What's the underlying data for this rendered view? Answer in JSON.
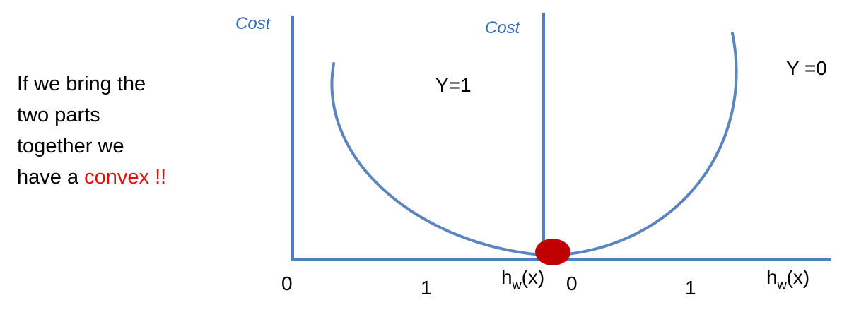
{
  "caption": {
    "line1": "If we bring the",
    "line2": "two parts",
    "line3": "together we",
    "line4_prefix": "have a ",
    "line4_accent": "convex !!"
  },
  "left_panel": {
    "y_axis_label": "Cost",
    "class_label": "Y=1",
    "tick_0": "0",
    "tick_1": "1",
    "x_axis_label_main": "h",
    "x_axis_label_sub": "w",
    "x_axis_label_arg": "(x)"
  },
  "right_panel": {
    "y_axis_label": "Cost",
    "class_label": "Y =0",
    "tick_0": "0",
    "tick_1": "1",
    "x_axis_label_main": "h",
    "x_axis_label_sub": "w",
    "x_axis_label_arg": "(x)"
  },
  "colors": {
    "axis": "#4f7fbd",
    "curve": "#5b86bd",
    "cost_label": "#2f6db5",
    "minimum_marker": "#c00000",
    "accent_text": "#e0110b"
  }
}
